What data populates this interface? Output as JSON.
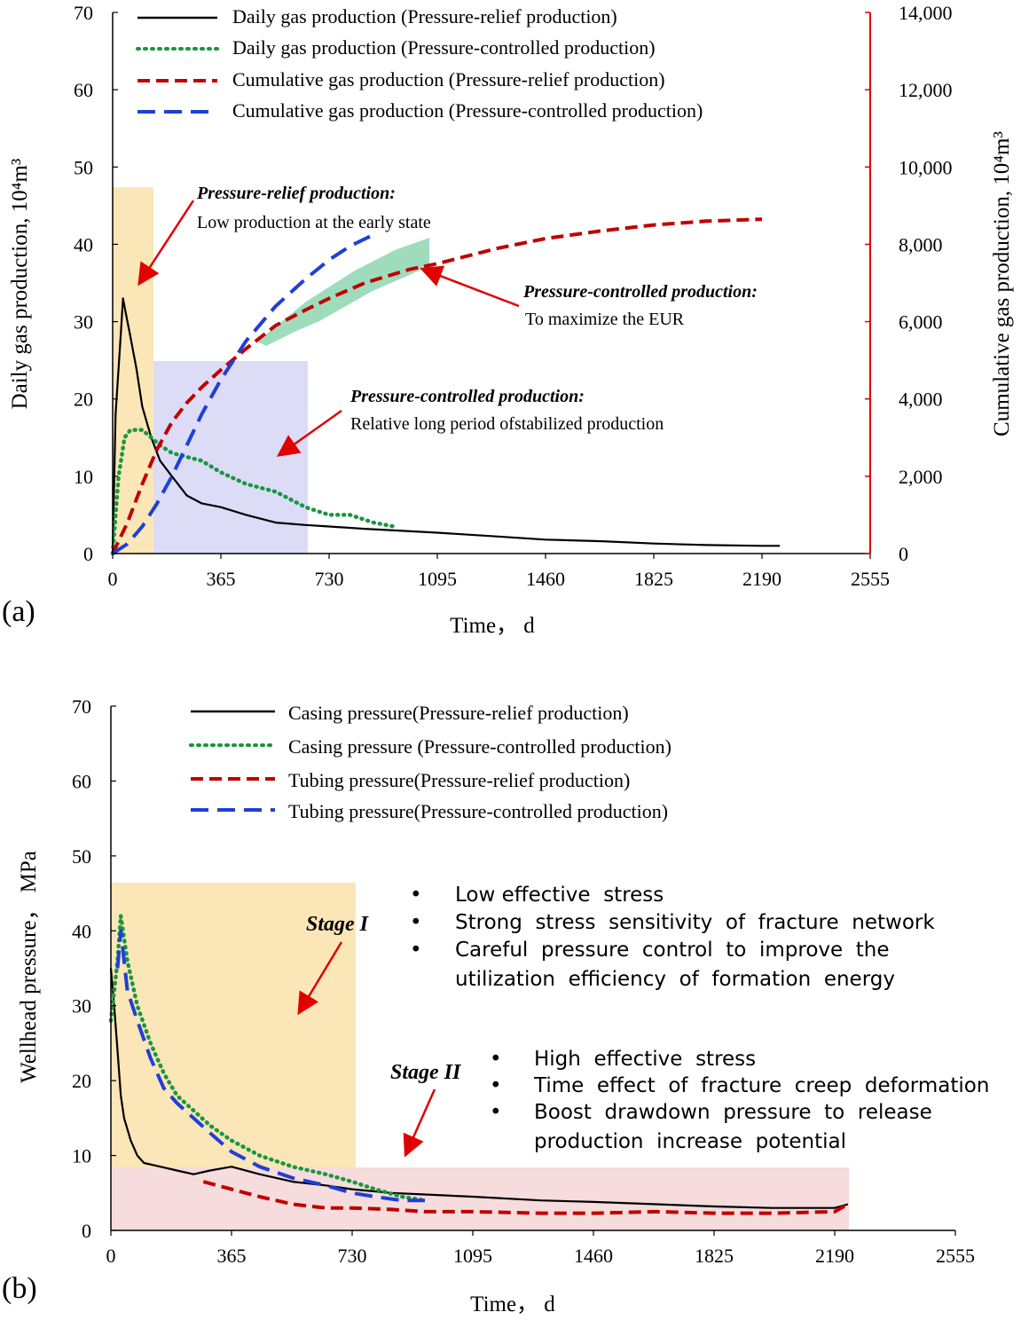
{
  "chart_data": [
    {
      "panel": "(a)",
      "type": "line",
      "xlabel": "Time， d",
      "ylabel_left": "Daily gas production, 10⁴m³",
      "ylabel_right": "Cumulative gas production, 10⁴m³",
      "xlim": [
        0,
        2555
      ],
      "x_ticks": [
        "0",
        "365",
        "730",
        "1095",
        "1460",
        "1825",
        "2190",
        "2555"
      ],
      "ylim_left": [
        0,
        70
      ],
      "y_ticks_left": [
        "0",
        "10",
        "20",
        "30",
        "40",
        "50",
        "60",
        "70"
      ],
      "ylim_right": [
        0,
        14000
      ],
      "y_ticks_right": [
        "0",
        "2,000",
        "4,000",
        "6,000",
        "8,000",
        "10,000",
        "12,000",
        "14,000"
      ],
      "legend": [
        "Daily gas production (Pressure-relief production)",
        "Daily gas production (Pressure-controlled production)",
        "Cumulative gas production (Pressure-relief production)",
        "Cumulative gas production (Pressure-controlled production)"
      ],
      "series": [
        {
          "name": "Daily gas production (Pressure-relief production)",
          "axis": "left",
          "color": "#000000",
          "style": "solid",
          "x": [
            0,
            10,
            25,
            35,
            45,
            60,
            80,
            100,
            130,
            160,
            200,
            250,
            300,
            365,
            450,
            550,
            650,
            730,
            850,
            950,
            1095,
            1300,
            1460,
            1650,
            1825,
            2000,
            2190,
            2250
          ],
          "y": [
            0,
            18,
            27,
            33,
            31,
            28,
            24,
            19,
            15,
            12,
            10,
            7.5,
            6.5,
            6,
            5,
            4,
            3.7,
            3.5,
            3.2,
            3,
            2.7,
            2.2,
            1.8,
            1.6,
            1.3,
            1.1,
            1,
            1
          ]
        },
        {
          "name": "Daily gas production (Pressure-controlled production)",
          "axis": "left",
          "color": "#1a9641",
          "style": "dotted",
          "x": [
            0,
            20,
            40,
            60,
            100,
            130,
            160,
            200,
            250,
            300,
            365,
            450,
            550,
            650,
            730,
            800,
            880,
            950
          ],
          "y": [
            0,
            10,
            15,
            16,
            16,
            15,
            14,
            13,
            12.5,
            12,
            10.5,
            9,
            8,
            6,
            5,
            5,
            4,
            3.5
          ]
        },
        {
          "name": "Cumulative gas production (Pressure-relief production)",
          "axis": "right",
          "color": "#c00000",
          "style": "dashed",
          "x": [
            0,
            50,
            100,
            150,
            200,
            250,
            300,
            365,
            450,
            550,
            650,
            730,
            850,
            1000,
            1095,
            1300,
            1460,
            1650,
            1825,
            2000,
            2190
          ],
          "y": [
            0,
            800,
            1800,
            2700,
            3400,
            3900,
            4300,
            4750,
            5300,
            5900,
            6300,
            6600,
            7000,
            7350,
            7500,
            7900,
            8150,
            8350,
            8500,
            8600,
            8650
          ]
        },
        {
          "name": "Cumulative gas production (Pressure-controlled production)",
          "axis": "right",
          "color": "#1f3fd6",
          "style": "dashed",
          "x": [
            0,
            50,
            100,
            150,
            200,
            250,
            300,
            365,
            450,
            550,
            650,
            730,
            800,
            880
          ],
          "y": [
            0,
            250,
            700,
            1300,
            2000,
            2800,
            3600,
            4500,
            5500,
            6400,
            7100,
            7600,
            7950,
            8250
          ]
        }
      ],
      "annotations": [
        {
          "title": "Pressure-relief production:",
          "text": "Low production at the early state"
        },
        {
          "title": "Pressure-controlled production:",
          "text": "To maximize  the EUR"
        },
        {
          "title": "Pressure-controlled production:",
          "text": "Relative long period ofstabilized production"
        }
      ],
      "shaded_regions": [
        {
          "color": "#fbe6b8",
          "x": [
            0,
            125
          ],
          "y_left": [
            0,
            47
          ]
        },
        {
          "color": "#dcdcf7",
          "x": [
            125,
            590
          ],
          "y_left": [
            0,
            25
          ]
        },
        {
          "color": "#9fdcbc",
          "between": "cumulative curves",
          "x": [
            450,
            1000
          ]
        }
      ]
    },
    {
      "panel": "(b)",
      "type": "line",
      "xlabel": "Time， d",
      "ylabel": "Wellhead pressure， MPa",
      "xlim": [
        0,
        2555
      ],
      "x_ticks": [
        "0",
        "365",
        "730",
        "1095",
        "1460",
        "1825",
        "2190",
        "2555"
      ],
      "ylim": [
        0,
        70
      ],
      "y_ticks": [
        "0",
        "10",
        "20",
        "30",
        "40",
        "50",
        "60",
        "70"
      ],
      "legend": [
        "Casing pressure(Pressure-relief production)",
        "Casing pressure (Pressure-controlled production)",
        "Tubing pressure(Pressure-relief production)",
        "Tubing pressure(Pressure-controlled production)"
      ],
      "series": [
        {
          "name": "Casing pressure(Pressure-relief production)",
          "color": "#000000",
          "style": "solid",
          "x": [
            0,
            10,
            20,
            30,
            40,
            60,
            80,
            100,
            150,
            200,
            250,
            300,
            365,
            450,
            550,
            650,
            730,
            850,
            950,
            1095,
            1300,
            1460,
            1650,
            1825,
            2000,
            2190,
            2230
          ],
          "y": [
            35,
            30,
            24,
            18,
            15,
            12,
            10,
            9,
            8.5,
            8,
            7.5,
            8,
            8.5,
            7.5,
            6.5,
            6,
            5.5,
            5,
            4.8,
            4.5,
            4,
            3.8,
            3.5,
            3.2,
            3,
            3,
            3.5
          ]
        },
        {
          "name": "Casing pressure (Pressure-controlled production)",
          "color": "#1a9641",
          "style": "dotted",
          "x": [
            0,
            20,
            30,
            50,
            80,
            120,
            160,
            200,
            250,
            300,
            365,
            450,
            550,
            650,
            730,
            800,
            880,
            950
          ],
          "y": [
            28,
            36,
            42,
            36,
            30,
            25,
            21,
            18,
            16,
            14,
            12,
            10,
            8.5,
            7.5,
            6.5,
            5.5,
            4.5,
            4
          ]
        },
        {
          "name": "Tubing pressure(Pressure-relief production)",
          "color": "#c00000",
          "style": "dashed",
          "x": [
            280,
            365,
            450,
            550,
            650,
            730,
            850,
            950,
            1095,
            1300,
            1460,
            1650,
            1825,
            2000,
            2190,
            2230
          ],
          "y": [
            6.5,
            5.5,
            4.5,
            3.5,
            3,
            3,
            2.8,
            2.5,
            2.5,
            2.3,
            2.3,
            2.5,
            2.3,
            2.3,
            2.5,
            3.5
          ]
        },
        {
          "name": "Tubing pressure(Pressure-controlled production)",
          "color": "#1f3fd6",
          "style": "dashed",
          "x": [
            20,
            30,
            50,
            80,
            120,
            160,
            200,
            250,
            300,
            365,
            450,
            550,
            650,
            730,
            800,
            880,
            950
          ],
          "y": [
            35,
            40,
            32,
            28,
            23,
            19,
            17,
            15,
            13,
            10.5,
            8.5,
            7,
            6,
            5,
            4.5,
            4,
            4
          ]
        }
      ],
      "stages": [
        {
          "label": "Stage I",
          "bullets": [
            "Low effective  stress",
            "Strong  stress  sensitivity  of  fracture  network",
            "Careful  pressure  control  to  improve  the",
            "utilization  efficiency  of  formation  energy"
          ]
        },
        {
          "label": "Stage II",
          "bullets": [
            "High  effective  stress",
            "Time  effect  of  fracture  creep  deformation",
            "Boost  drawdown  pressure  to  release",
            "production  increase  potential"
          ]
        }
      ],
      "shaded_regions": [
        {
          "color": "#fbe6b8",
          "x": [
            0,
            730
          ],
          "y": [
            0,
            46
          ]
        },
        {
          "color": "#f6dcdc",
          "x": [
            0,
            2220
          ],
          "y": [
            0,
            8
          ]
        }
      ]
    }
  ],
  "colors": {
    "black": "#000000",
    "green": "#1a9641",
    "red": "#c00000",
    "blue": "#1f3fd6",
    "right_axis": "#e00000"
  }
}
